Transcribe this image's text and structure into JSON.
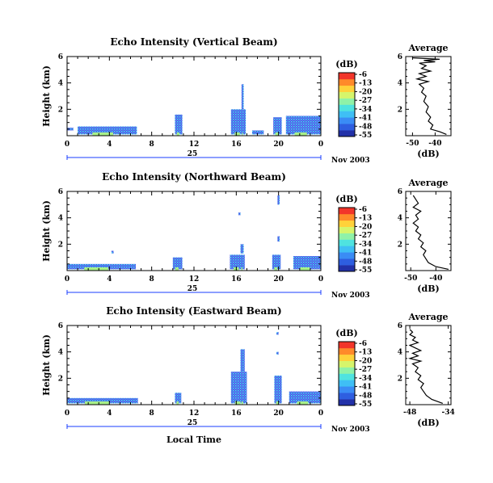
{
  "colors": {
    "colorbar": [
      "#2231a8",
      "#2e5ee0",
      "#3a8cf5",
      "#3fbff5",
      "#4fe3e0",
      "#8ff2a8",
      "#d6f56b",
      "#ffd23a",
      "#ff8a2a",
      "#f2352a"
    ],
    "echo_blue": "#3a4fe6",
    "echo_cyan": "#45d9f0",
    "echo_green": "#a8f08a",
    "line": "#000000"
  },
  "local_time_label": "Local Time",
  "chart_data": [
    {
      "type": "heatmap",
      "title": "Echo Intensity (Vertical Beam)",
      "ylabel": "Height (km)",
      "xlabel": "",
      "xlim": [
        0,
        24
      ],
      "ylim": [
        0,
        6
      ],
      "x_ticks": [
        "0",
        "4",
        "8",
        "12",
        "16",
        "20",
        "0"
      ],
      "y_ticks": [
        "2",
        "4",
        "6"
      ],
      "date_label": "25",
      "month_label": "Nov 2003",
      "colorbar": {
        "unit": "(dB)",
        "ticks": [
          "-6",
          "-13",
          "-20",
          "-27",
          "-34",
          "-41",
          "-48",
          "-55"
        ]
      },
      "echoes": [
        {
          "t0": 0.0,
          "t1": 0.6,
          "h0": 0.4,
          "h1": 0.6
        },
        {
          "t0": 1.0,
          "t1": 6.6,
          "h0": 0.1,
          "h1": 0.7
        },
        {
          "t0": 10.2,
          "t1": 10.9,
          "h0": 0.1,
          "h1": 1.6
        },
        {
          "t0": 15.5,
          "t1": 16.9,
          "h0": 0.1,
          "h1": 2.0
        },
        {
          "t0": 16.5,
          "t1": 16.7,
          "h0": 2.0,
          "h1": 3.9
        },
        {
          "t0": 17.5,
          "t1": 18.6,
          "h0": 0.1,
          "h1": 0.4
        },
        {
          "t0": 19.5,
          "t1": 20.3,
          "h0": 0.1,
          "h1": 1.4
        },
        {
          "t0": 20.7,
          "t1": 24.0,
          "h0": 0.1,
          "h1": 1.5
        }
      ],
      "profile": {
        "title": "Average",
        "xlabel": "(dB)",
        "xlim": [
          -53,
          -33
        ],
        "ylim": [
          0,
          6
        ],
        "x_ticks": [
          {
            "v": -50,
            "l": "-50"
          },
          {
            "v": -40,
            "l": "-40"
          }
        ],
        "y_ticks": [
          "2",
          "4",
          "6"
        ],
        "heights": [
          0.1,
          0.3,
          0.5,
          0.8,
          1.1,
          1.4,
          1.8,
          2.2,
          2.6,
          3.0,
          3.3,
          3.6,
          3.9,
          4.1,
          4.3,
          4.5,
          4.7,
          4.9,
          5.1,
          5.3,
          5.5,
          5.6,
          5.7,
          5.8,
          5.9
        ],
        "values": [
          -35,
          -38,
          -42,
          -41,
          -43,
          -42,
          -44,
          -43,
          -45,
          -44,
          -46,
          -45,
          -47,
          -43,
          -48,
          -44,
          -47,
          -42,
          -46,
          -44,
          -47,
          -40,
          -45,
          -38,
          -50
        ]
      }
    },
    {
      "type": "heatmap",
      "title": "Echo Intensity (Northward Beam)",
      "ylabel": "Height (km)",
      "xlabel": "",
      "xlim": [
        0,
        24
      ],
      "ylim": [
        0,
        6
      ],
      "x_ticks": [
        "0",
        "4",
        "8",
        "12",
        "16",
        "20",
        "0"
      ],
      "y_ticks": [
        "2",
        "4",
        "6"
      ],
      "date_label": "25",
      "month_label": "Nov 2003",
      "colorbar": {
        "unit": "(dB)",
        "ticks": [
          "-6",
          "-13",
          "-20",
          "-27",
          "-34",
          "-41",
          "-48",
          "-55"
        ]
      },
      "echoes": [
        {
          "t0": 0.0,
          "t1": 6.5,
          "h0": 0.1,
          "h1": 0.5
        },
        {
          "t0": 4.2,
          "t1": 4.4,
          "h0": 1.3,
          "h1": 1.5
        },
        {
          "t0": 10.0,
          "t1": 10.9,
          "h0": 0.1,
          "h1": 1.0
        },
        {
          "t0": 15.4,
          "t1": 16.8,
          "h0": 0.1,
          "h1": 1.2
        },
        {
          "t0": 16.4,
          "t1": 16.7,
          "h0": 1.3,
          "h1": 2.0
        },
        {
          "t0": 16.2,
          "t1": 16.4,
          "h0": 4.2,
          "h1": 4.4
        },
        {
          "t0": 19.4,
          "t1": 20.2,
          "h0": 0.1,
          "h1": 1.2
        },
        {
          "t0": 19.9,
          "t1": 20.1,
          "h0": 2.2,
          "h1": 2.6
        },
        {
          "t0": 19.9,
          "t1": 20.1,
          "h0": 5.0,
          "h1": 5.7
        },
        {
          "t0": 21.4,
          "t1": 24.0,
          "h0": 0.1,
          "h1": 1.1
        }
      ],
      "profile": {
        "title": "Average",
        "xlabel": "(dB)",
        "xlim": [
          -52,
          -34
        ],
        "ylim": [
          0,
          6
        ],
        "x_ticks": [
          {
            "v": -50,
            "l": "-50"
          },
          {
            "v": -40,
            "l": "-40"
          }
        ],
        "y_ticks": [
          "2",
          "4",
          "6"
        ],
        "heights": [
          0.1,
          0.3,
          0.6,
          0.9,
          1.2,
          1.5,
          1.8,
          2.1,
          2.4,
          2.7,
          3.0,
          3.3,
          3.6,
          3.9,
          4.2,
          4.5,
          4.8,
          5.1,
          5.4,
          5.7
        ],
        "values": [
          -35,
          -40,
          -43,
          -44,
          -45,
          -44,
          -46,
          -45,
          -47,
          -46,
          -48,
          -47,
          -49,
          -47,
          -48,
          -46,
          -49,
          -47,
          -48,
          -49
        ]
      }
    },
    {
      "type": "heatmap",
      "title": "Echo Intensity (Eastward Beam)",
      "ylabel": "Height (km)",
      "xlabel": "Local Time",
      "xlim": [
        0,
        24
      ],
      "ylim": [
        0,
        6
      ],
      "x_ticks": [
        "0",
        "4",
        "8",
        "12",
        "16",
        "20",
        "0"
      ],
      "y_ticks": [
        "2",
        "4",
        "6"
      ],
      "date_label": "25",
      "month_label": "Nov 2003",
      "colorbar": {
        "unit": "(dB)",
        "ticks": [
          "-6",
          "-13",
          "-20",
          "-27",
          "-34",
          "-41",
          "-48",
          "-55"
        ]
      },
      "echoes": [
        {
          "t0": 0.0,
          "t1": 6.7,
          "h0": 0.1,
          "h1": 0.5
        },
        {
          "t0": 10.2,
          "t1": 10.8,
          "h0": 0.1,
          "h1": 0.9
        },
        {
          "t0": 15.5,
          "t1": 17.0,
          "h0": 0.1,
          "h1": 2.5
        },
        {
          "t0": 16.4,
          "t1": 16.8,
          "h0": 2.5,
          "h1": 4.2
        },
        {
          "t0": 19.6,
          "t1": 20.3,
          "h0": 0.1,
          "h1": 2.2
        },
        {
          "t0": 19.8,
          "t1": 20.0,
          "h0": 3.8,
          "h1": 4.0
        },
        {
          "t0": 19.8,
          "t1": 20.0,
          "h0": 5.3,
          "h1": 5.5
        },
        {
          "t0": 21.0,
          "t1": 24.0,
          "h0": 0.1,
          "h1": 1.0
        }
      ],
      "profile": {
        "title": "Average",
        "xlabel": "(dB)",
        "xlim": [
          -49.5,
          -33
        ],
        "ylim": [
          0,
          6
        ],
        "x_ticks": [
          {
            "v": -48,
            "l": "-48"
          },
          {
            "v": -34,
            "l": "-34"
          }
        ],
        "y_ticks": [
          "2",
          "4",
          "6"
        ],
        "heights": [
          0.1,
          0.4,
          0.7,
          1.0,
          1.3,
          1.6,
          1.9,
          2.2,
          2.5,
          2.8,
          3.1,
          3.3,
          3.5,
          3.7,
          3.9,
          4.1,
          4.3,
          4.5,
          4.7,
          4.9,
          5.1,
          5.3,
          5.5,
          5.7
        ],
        "values": [
          -36,
          -40,
          -42,
          -43,
          -44,
          -43,
          -45,
          -44,
          -46,
          -45,
          -47,
          -44,
          -48,
          -45,
          -47,
          -44,
          -46,
          -48,
          -45,
          -47,
          -46,
          -48,
          -47,
          -48
        ]
      }
    }
  ]
}
